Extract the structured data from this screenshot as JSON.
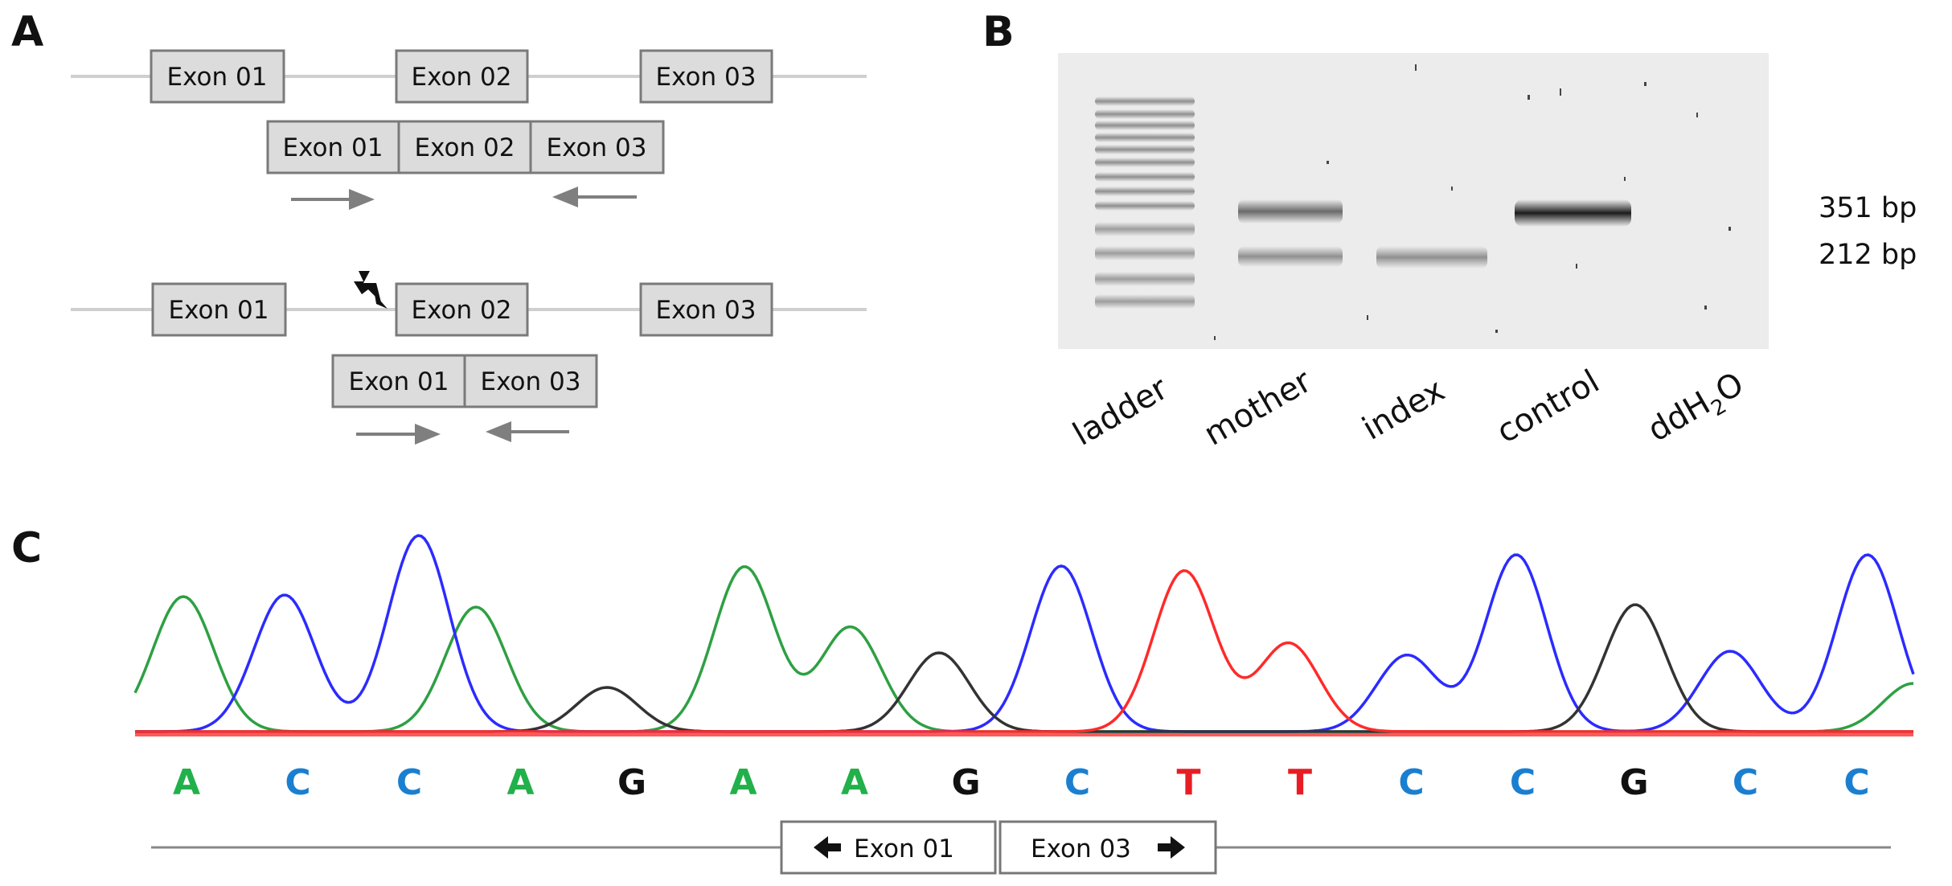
{
  "panel_labels": {
    "a": "A",
    "b": "B",
    "c": "C"
  },
  "panel_a": {
    "wildtype_gene": [
      "Exon 01",
      "Exon 02",
      "Exon 03"
    ],
    "wildtype_transcript": [
      "Exon 01",
      "Exon 02",
      "Exon 03"
    ],
    "mutant_gene": [
      "Exon 01",
      "Exon 02",
      "Exon 03"
    ],
    "mutant_transcript": [
      "Exon 01",
      "Exon 03"
    ]
  },
  "panel_b": {
    "lanes": [
      "ladder",
      "mother",
      "index",
      "control",
      "ddH2O"
    ],
    "lane_ddh2o": {
      "prefix": "ddH",
      "sub": "2",
      "suffix": "O"
    },
    "band_labels": [
      "351 bp",
      "212 bp"
    ]
  },
  "panel_c": {
    "bases": [
      "A",
      "C",
      "C",
      "A",
      "G",
      "A",
      "A",
      "G",
      "C",
      "T",
      "T",
      "C",
      "C",
      "G",
      "C",
      "C"
    ],
    "base_colors": {
      "A": "#22b04b",
      "C": "#1a7fd0",
      "G": "#111111",
      "T": "#e81d24"
    },
    "junction_left": "Exon 01",
    "junction_right": "Exon 03"
  },
  "colors": {
    "exon_fill": "#dcdcdc",
    "exon_stroke": "#7a7a7a",
    "intron_line": "#cfcfcf",
    "arrow": "#7f7f7f",
    "gel_bg": "#ececec",
    "trace_green": "#2ea043",
    "trace_blue": "#2b2bff",
    "trace_black": "#333333",
    "trace_red": "#ff2a2a"
  }
}
